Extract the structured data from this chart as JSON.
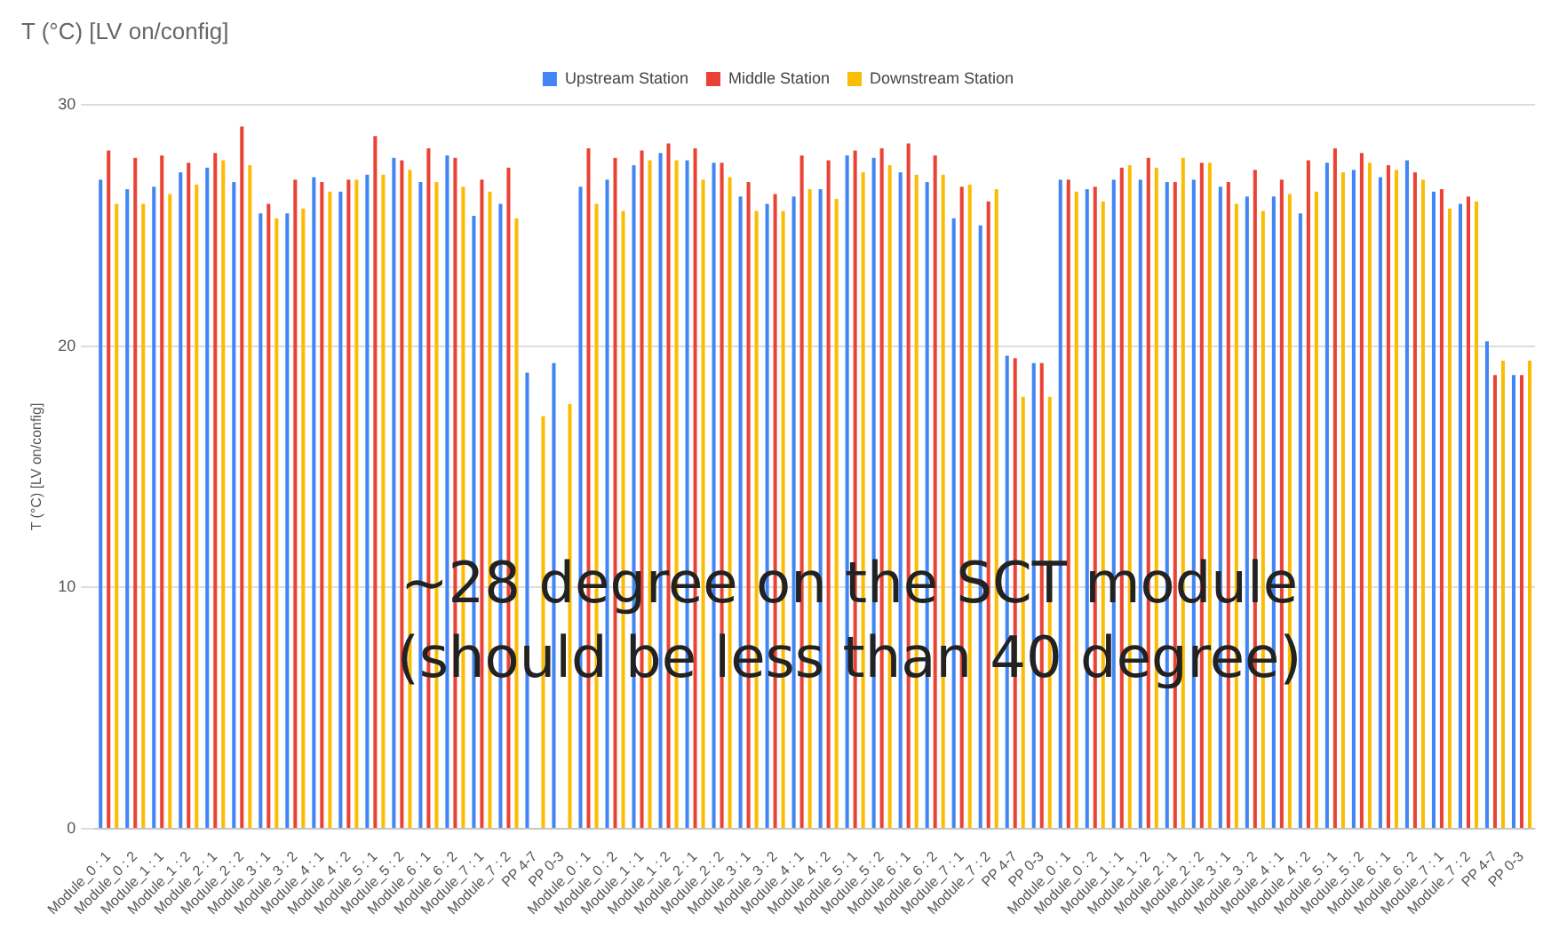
{
  "chart_data": {
    "type": "bar",
    "title": "T (°C) [LV on/config]",
    "ylabel": "T (°C) [LV on/config]",
    "categories": [
      "Module_0 : 1",
      "Module_0 : 2",
      "Module_1 : 1",
      "Module_1 : 2",
      "Module_2 : 1",
      "Module_2 : 2",
      "Module_3 : 1",
      "Module_3 : 2",
      "Module_4 : 1",
      "Module_4 : 2",
      "Module_5 : 1",
      "Module_5 : 2",
      "Module_6 : 1",
      "Module_6 : 2",
      "Module_7 : 1",
      "Module_7 : 2",
      "PP 4-7",
      "PP 0-3",
      "Module_0 : 1",
      "Module_0 : 2",
      "Module_1 : 1",
      "Module_1 : 2",
      "Module_2 : 1",
      "Module_2 : 2",
      "Module_3 : 1",
      "Module_3 : 2",
      "Module_4 : 1",
      "Module_4 : 2",
      "Module_5 : 1",
      "Module_5 : 2",
      "Module_6 : 1",
      "Module_6 : 2",
      "Module_7 : 1",
      "Module_7 : 2",
      "PP 4-7",
      "PP 0-3",
      "Module_0 : 1",
      "Module_0 : 2",
      "Module_1 : 1",
      "Module_1 : 2",
      "Module_2 : 1",
      "Module_2 : 2",
      "Module_3 : 1",
      "Module_3 : 2",
      "Module_4 : 1",
      "Module_4 : 2",
      "Module_5 : 1",
      "Module_5 : 2",
      "Module_6 : 1",
      "Module_6 : 2",
      "Module_7 : 1",
      "Module_7 : 2",
      "PP 4-7",
      "PP 0-3"
    ],
    "series": [
      {
        "name": "Upstream Station",
        "color": "#4285f4",
        "values": [
          26.9,
          26.5,
          26.6,
          27.2,
          27.4,
          26.8,
          25.5,
          25.5,
          27.0,
          26.4,
          27.1,
          27.8,
          26.8,
          27.9,
          25.4,
          25.9,
          18.9,
          19.3,
          26.6,
          26.9,
          27.5,
          28.0,
          27.7,
          27.6,
          26.2,
          25.9,
          26.2,
          26.5,
          27.9,
          27.8,
          27.2,
          26.8,
          25.3,
          25.0,
          19.6,
          19.3,
          26.9,
          26.5,
          26.9,
          26.9,
          26.8,
          26.9,
          26.6,
          26.2,
          26.2,
          25.5,
          27.6,
          27.3,
          27.0,
          27.7,
          26.4,
          25.9,
          20.2,
          18.8
        ]
      },
      {
        "name": "Middle Station",
        "color": "#ea4335",
        "values": [
          28.1,
          27.8,
          27.9,
          27.6,
          28.0,
          29.1,
          25.9,
          26.9,
          26.8,
          26.9,
          28.7,
          27.7,
          28.2,
          27.8,
          26.9,
          27.4,
          null,
          null,
          28.2,
          27.8,
          28.1,
          28.4,
          28.2,
          27.6,
          26.8,
          26.3,
          27.9,
          27.7,
          28.1,
          28.2,
          28.4,
          27.9,
          26.6,
          26.0,
          19.5,
          19.3,
          26.9,
          26.6,
          27.4,
          27.8,
          26.8,
          27.6,
          26.8,
          27.3,
          26.9,
          27.7,
          28.2,
          28.0,
          27.5,
          27.2,
          26.5,
          26.2,
          18.8,
          18.8
        ]
      },
      {
        "name": "Downstream Station",
        "color": "#fbbc04",
        "values": [
          25.9,
          25.9,
          26.3,
          26.7,
          27.7,
          27.5,
          25.3,
          25.7,
          26.4,
          26.9,
          27.1,
          27.3,
          26.8,
          26.6,
          26.4,
          25.3,
          17.1,
          17.6,
          25.9,
          25.6,
          27.7,
          27.7,
          26.9,
          27.0,
          25.6,
          25.6,
          26.5,
          26.1,
          27.2,
          27.5,
          27.1,
          27.1,
          26.7,
          26.5,
          17.9,
          17.9,
          26.4,
          26.0,
          27.5,
          27.4,
          27.8,
          27.6,
          25.9,
          25.6,
          26.3,
          26.4,
          27.2,
          27.6,
          27.3,
          26.9,
          25.7,
          26.0,
          19.4,
          19.4
        ]
      }
    ],
    "ylim": [
      0,
      30
    ],
    "yticks": [
      0,
      10,
      20,
      30
    ],
    "grid": "y",
    "legend": "top",
    "annotations": [
      "~28 degree on the SCT module (should be less than 40 degree)"
    ]
  }
}
